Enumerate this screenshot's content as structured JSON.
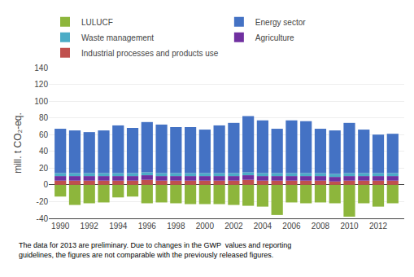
{
  "chart_data": {
    "type": "bar",
    "stacked": true,
    "x": [
      1990,
      1991,
      1992,
      1993,
      1994,
      1995,
      1996,
      1997,
      1998,
      1999,
      2000,
      2001,
      2002,
      2003,
      2004,
      2005,
      2006,
      2007,
      2008,
      2009,
      2010,
      2011,
      2012,
      2013
    ],
    "series": [
      {
        "name": "Industrial processes and products use",
        "color": "#c0504d",
        "values": [
          5,
          5,
          5,
          5,
          5,
          5,
          6,
          5,
          5,
          5,
          5,
          5,
          5,
          6,
          5,
          5,
          5,
          5,
          5,
          4,
          5,
          5,
          5,
          5
        ]
      },
      {
        "name": "Agriculture",
        "color": "#7030a0",
        "values": [
          5.5,
          5.5,
          5.5,
          5.5,
          5.5,
          5.5,
          5.5,
          5.5,
          5.5,
          5.5,
          5.5,
          5.5,
          5.5,
          5.5,
          5.5,
          5.5,
          5.5,
          5.5,
          5.5,
          5.5,
          5.5,
          5.5,
          5.5,
          5.5
        ]
      },
      {
        "name": "Waste management",
        "color": "#4bacc6",
        "values": [
          3.5,
          3.5,
          3.5,
          3.5,
          3.5,
          3.5,
          3.5,
          3.5,
          3.5,
          3.5,
          3.5,
          3.5,
          3.5,
          3.5,
          3.5,
          3.5,
          3.5,
          3.5,
          3.5,
          3.5,
          3.5,
          3.5,
          3.5,
          3.5
        ]
      },
      {
        "name": "Energy sector",
        "color": "#4472c4",
        "values": [
          53,
          51,
          49,
          51,
          57,
          54,
          60,
          58,
          55,
          55,
          52,
          57,
          60,
          67,
          63,
          53,
          63,
          62,
          53,
          52,
          60,
          52,
          46,
          47
        ]
      },
      {
        "name": "LULUCF",
        "color": "#8db63c",
        "values": [
          -14,
          -24,
          -22,
          -21,
          -15,
          -14,
          -22,
          -21,
          -22,
          -23,
          -23,
          -23,
          -24,
          -25,
          -26,
          -36,
          -21,
          -22,
          -21,
          -22,
          -38,
          -22,
          -26,
          -22
        ]
      }
    ],
    "ylabel": "mill. t CO₂-eq.",
    "xlim": [
      1989.2,
      2013.8
    ],
    "xticks": [
      1990,
      1992,
      1994,
      1996,
      1998,
      2000,
      2002,
      2004,
      2006,
      2008,
      2010,
      2012
    ],
    "ylim": [
      -40,
      140
    ],
    "yticks": [
      -40,
      -20,
      0,
      20,
      40,
      60,
      80,
      100,
      120,
      140
    ],
    "grid": true,
    "legend": "upper left",
    "annotations": [
      {
        "text": "The data for 2013 are preliminary. Due to changes in the GWP  values and reporting\nguidelines, the figures are not comparable with the previously released figures."
      }
    ]
  }
}
